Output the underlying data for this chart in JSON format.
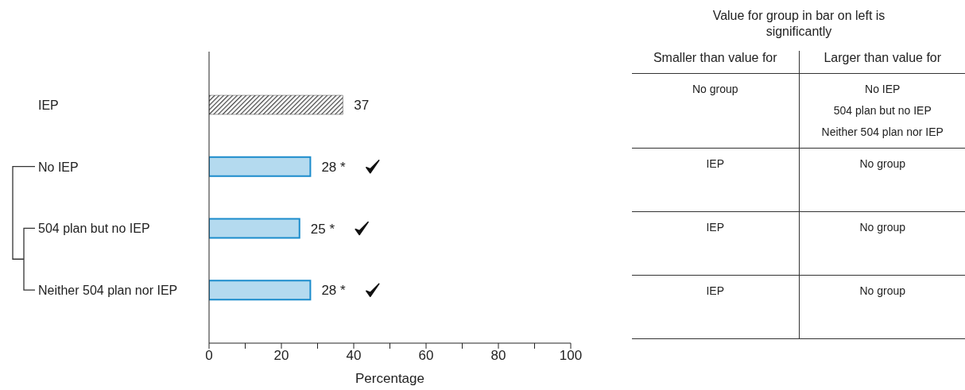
{
  "chart_data": [
    {
      "type": "bar",
      "orientation": "horizontal",
      "categories": [
        "IEP",
        "No IEP",
        "504 plan but no IEP",
        "Neither 504 plan nor IEP"
      ],
      "values": [
        37,
        28,
        25,
        28
      ],
      "colors": [
        "#404040",
        "#b4daef",
        "#b4daef",
        "#b4daef"
      ],
      "value_labels": [
        "37",
        "28 *",
        "25 *",
        "28 *"
      ],
      "xlabel": "Percentage",
      "xlim": [
        0,
        100
      ],
      "xticks": [
        0,
        {
          "value": 10,
          "label": null
        },
        20,
        {
          "value": 30,
          "label": null
        },
        40,
        {
          "value": 50,
          "label": null
        },
        60,
        {
          "value": 70,
          "label": null
        },
        80,
        {
          "value": 90,
          "label": null
        },
        100
      ],
      "grid": false,
      "legend": false
    },
    {
      "type": "other",
      "title": "Value for group in bar on left is significantly",
      "categories": [
        "Smaller than value for",
        "Larger than value for"
      ],
      "cell_labels": [
        [
          [
            "No group"
          ],
          [
            "No IEP",
            "504 plan but no IEP",
            "Neither 504 plan nor IEP"
          ]
        ],
        [
          [
            "IEP"
          ],
          [
            "No group"
          ]
        ],
        [
          [
            "IEP"
          ],
          [
            "No group"
          ]
        ],
        [
          [
            "IEP"
          ],
          [
            "No group"
          ]
        ]
      ]
    }
  ]
}
